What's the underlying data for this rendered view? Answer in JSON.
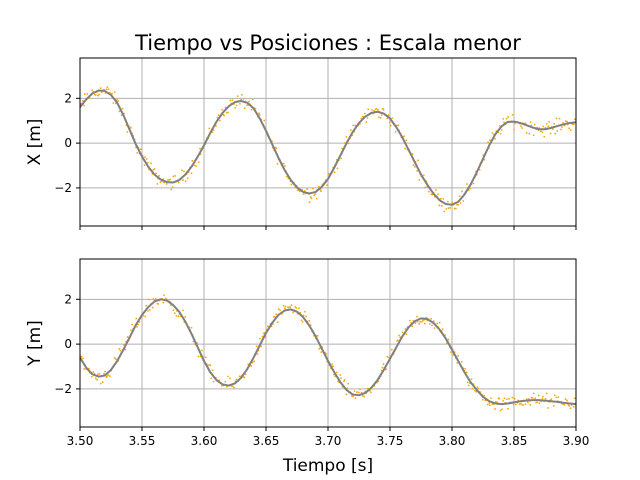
{
  "title": "Tiempo vs Posiciones : Escala menor",
  "xlabel": "Tiempo [s]",
  "colors": {
    "noise": "#ffa500",
    "fit": "#808080",
    "grid": "#b0b0b0"
  },
  "chart_data": [
    {
      "type": "line",
      "ylabel": "X [m]",
      "xlim": [
        3.5,
        3.9
      ],
      "ylim": [
        -3.7,
        3.8
      ],
      "grid": true,
      "x_ticks": [
        3.5,
        3.55,
        3.6,
        3.65,
        3.7,
        3.75,
        3.8,
        3.85,
        3.9
      ],
      "x_tick_labels_visible": false,
      "y_ticks": [
        -2,
        0,
        2
      ],
      "y_tick_labels": [
        "−2",
        "0",
        "2"
      ],
      "series": [
        {
          "kind": "fit-curve",
          "x": [
            3.5,
            3.505,
            3.51,
            3.515,
            3.52,
            3.525,
            3.53,
            3.535,
            3.54,
            3.545,
            3.55,
            3.555,
            3.56,
            3.565,
            3.57,
            3.575,
            3.58,
            3.585,
            3.59,
            3.595,
            3.6,
            3.605,
            3.61,
            3.615,
            3.62,
            3.625,
            3.63,
            3.635,
            3.64,
            3.645,
            3.65,
            3.655,
            3.66,
            3.665,
            3.67,
            3.675,
            3.68,
            3.685,
            3.69,
            3.695,
            3.7,
            3.705,
            3.71,
            3.715,
            3.72,
            3.725,
            3.73,
            3.735,
            3.74,
            3.745,
            3.75,
            3.755,
            3.76,
            3.765,
            3.77,
            3.775,
            3.78,
            3.785,
            3.79,
            3.795,
            3.8,
            3.805,
            3.81,
            3.815,
            3.82,
            3.825,
            3.83,
            3.835,
            3.84,
            3.845,
            3.85,
            3.855,
            3.86,
            3.865,
            3.87,
            3.875,
            3.88,
            3.885,
            3.89,
            3.895,
            3.9
          ],
          "y": [
            1.6,
            1.95,
            2.22,
            2.35,
            2.33,
            2.15,
            1.8,
            1.25,
            0.6,
            -0.05,
            -0.6,
            -1.05,
            -1.4,
            -1.62,
            -1.74,
            -1.76,
            -1.65,
            -1.4,
            -1.05,
            -0.6,
            -0.1,
            0.45,
            0.95,
            1.35,
            1.65,
            1.83,
            1.88,
            1.8,
            1.55,
            1.1,
            0.55,
            -0.05,
            -0.65,
            -1.2,
            -1.65,
            -1.98,
            -2.18,
            -2.25,
            -2.18,
            -1.95,
            -1.6,
            -1.1,
            -0.55,
            0.0,
            0.5,
            0.9,
            1.18,
            1.35,
            1.4,
            1.32,
            1.1,
            0.72,
            0.25,
            -0.3,
            -0.85,
            -1.4,
            -1.85,
            -2.25,
            -2.55,
            -2.72,
            -2.75,
            -2.62,
            -2.3,
            -1.85,
            -1.3,
            -0.7,
            -0.1,
            0.4,
            0.75,
            0.95,
            0.96,
            0.9,
            0.8,
            0.7,
            0.62,
            0.62,
            0.68,
            0.76,
            0.84,
            0.9,
            0.93
          ]
        },
        {
          "kind": "noisy-samples",
          "spread": 0.22,
          "count": 420
        }
      ]
    },
    {
      "type": "line",
      "ylabel": "Y [m]",
      "xlim": [
        3.5,
        3.9
      ],
      "ylim": [
        -3.7,
        3.8
      ],
      "grid": true,
      "x_ticks": [
        3.5,
        3.55,
        3.6,
        3.65,
        3.7,
        3.75,
        3.8,
        3.85,
        3.9
      ],
      "x_tick_labels": [
        "3.50",
        "3.55",
        "3.60",
        "3.65",
        "3.70",
        "3.75",
        "3.80",
        "3.85",
        "3.90"
      ],
      "y_ticks": [
        -2,
        0,
        2
      ],
      "y_tick_labels": [
        "−2",
        "0",
        "2"
      ],
      "series": [
        {
          "kind": "fit-curve",
          "x": [
            3.5,
            3.505,
            3.51,
            3.515,
            3.52,
            3.525,
            3.53,
            3.535,
            3.54,
            3.545,
            3.55,
            3.555,
            3.56,
            3.565,
            3.57,
            3.575,
            3.58,
            3.585,
            3.59,
            3.595,
            3.6,
            3.605,
            3.61,
            3.615,
            3.62,
            3.625,
            3.63,
            3.635,
            3.64,
            3.645,
            3.65,
            3.655,
            3.66,
            3.665,
            3.67,
            3.675,
            3.68,
            3.685,
            3.69,
            3.695,
            3.7,
            3.705,
            3.71,
            3.715,
            3.72,
            3.725,
            3.73,
            3.735,
            3.74,
            3.745,
            3.75,
            3.755,
            3.76,
            3.765,
            3.77,
            3.775,
            3.78,
            3.785,
            3.79,
            3.795,
            3.8,
            3.805,
            3.81,
            3.815,
            3.82,
            3.825,
            3.83,
            3.835,
            3.84,
            3.845,
            3.85,
            3.855,
            3.86,
            3.865,
            3.87,
            3.875,
            3.88,
            3.885,
            3.89,
            3.895,
            3.9
          ],
          "y": [
            -0.6,
            -1.05,
            -1.35,
            -1.45,
            -1.4,
            -1.15,
            -0.75,
            -0.25,
            0.3,
            0.85,
            1.3,
            1.65,
            1.9,
            2.0,
            1.95,
            1.75,
            1.45,
            1.0,
            0.45,
            -0.15,
            -0.75,
            -1.25,
            -1.6,
            -1.8,
            -1.85,
            -1.75,
            -1.5,
            -1.1,
            -0.6,
            -0.05,
            0.5,
            0.95,
            1.3,
            1.5,
            1.55,
            1.45,
            1.2,
            0.82,
            0.35,
            -0.2,
            -0.75,
            -1.25,
            -1.7,
            -2.05,
            -2.25,
            -2.28,
            -2.18,
            -1.95,
            -1.6,
            -1.15,
            -0.65,
            -0.15,
            0.35,
            0.75,
            1.02,
            1.15,
            1.12,
            0.95,
            0.65,
            0.25,
            -0.25,
            -0.75,
            -1.25,
            -1.7,
            -2.05,
            -2.35,
            -2.55,
            -2.65,
            -2.68,
            -2.65,
            -2.6,
            -2.55,
            -2.52,
            -2.5,
            -2.5,
            -2.52,
            -2.55,
            -2.58,
            -2.62,
            -2.65,
            -2.68
          ]
        },
        {
          "kind": "noisy-samples",
          "spread": 0.22,
          "count": 420
        }
      ]
    }
  ]
}
